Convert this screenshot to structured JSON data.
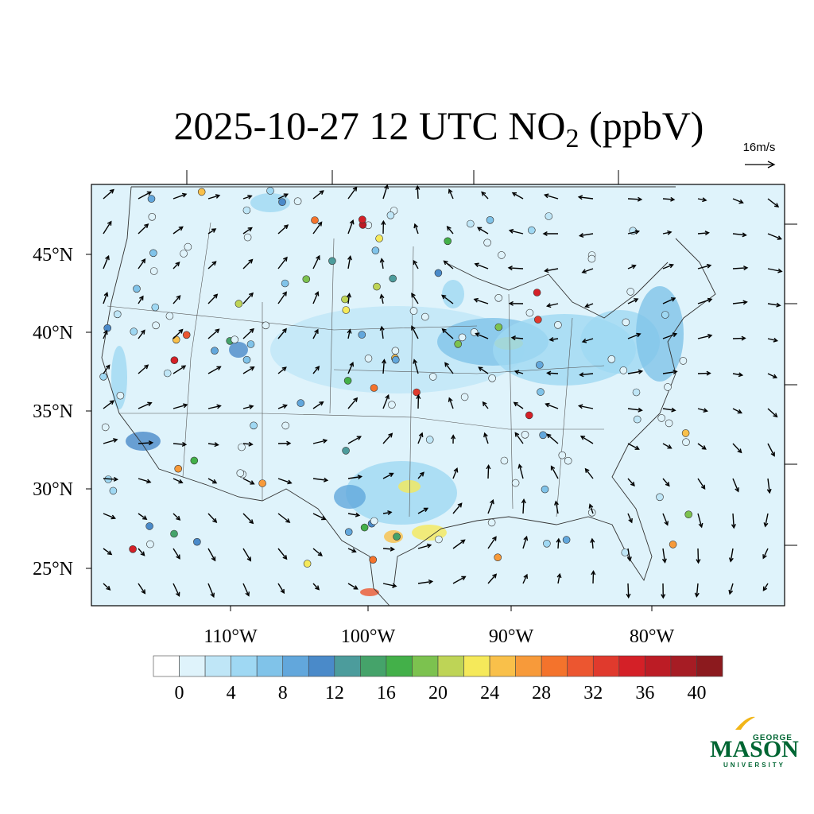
{
  "title": {
    "main": "2025-10-27 12 UTC NO",
    "sub": "2",
    "tail": " (ppbV)"
  },
  "wind_key": "16m/s",
  "lat_labels": [
    "45°N",
    "40°N",
    "35°N",
    "30°N",
    "25°N"
  ],
  "lon_labels": [
    "110°W",
    "100°W",
    "90°W",
    "80°W"
  ],
  "colorbar": {
    "colors": [
      "#ffffff",
      "#dff3fb",
      "#bfe6f7",
      "#9fd8f3",
      "#80c3e9",
      "#62a7dc",
      "#4a8ac9",
      "#4c9c9c",
      "#45a36a",
      "#43b049",
      "#7cc24f",
      "#bed456",
      "#f5e95a",
      "#f9c04a",
      "#f79a3a",
      "#f4732c",
      "#ec5630",
      "#e03a2d",
      "#d42027",
      "#bc1c25",
      "#a61c24",
      "#8c1a1e"
    ],
    "ticks": [
      0,
      4,
      8,
      12,
      16,
      20,
      24,
      28,
      32,
      36,
      40
    ]
  },
  "logo": {
    "top": "GEORGE",
    "main": "MASON",
    "bottom": "UNIVERSITY"
  }
}
